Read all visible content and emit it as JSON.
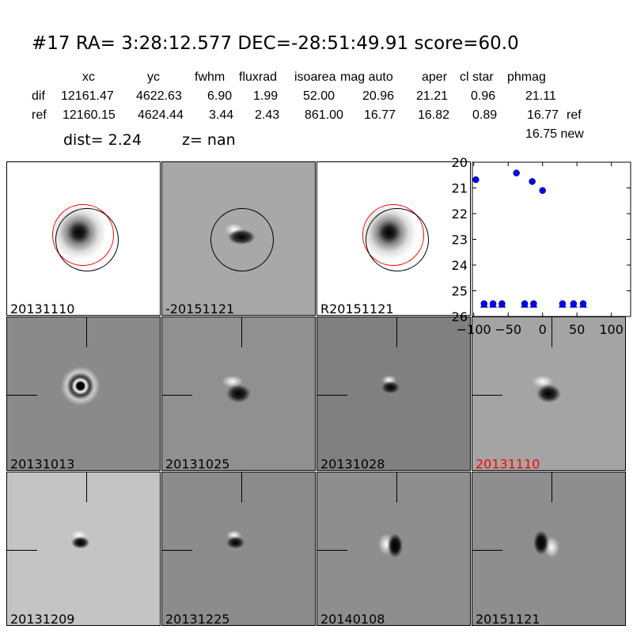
{
  "title": "#17   RA= 3:28:12.577 DEC=-28:51:49.91      score=60.0",
  "table": {
    "headers": [
      "xc",
      "yc",
      "fwhm",
      "fluxrad",
      "isoarea",
      "mag auto",
      "aper",
      "cl star",
      "phmag"
    ],
    "rows": [
      {
        "label": "dif",
        "values": [
          "12161.47",
          "4622.63",
          "6.90",
          "1.99",
          "52.00",
          "20.96",
          "21.21",
          "0.96",
          "21.11"
        ],
        "suffix": ""
      },
      {
        "label": "ref",
        "values": [
          "12160.15",
          "4624.44",
          "3.44",
          "2.43",
          "861.00",
          "16.77",
          "16.82",
          "0.89",
          "16.77"
        ],
        "suffix": "ref"
      }
    ],
    "new_mag": "16.75 new",
    "dist": "dist=  2.24",
    "z": "z=   nan"
  },
  "stamps": [
    {
      "label": "20131110",
      "bg": "#ffffff",
      "type": "ref",
      "color": "#000000"
    },
    {
      "label": "-20151121",
      "bg": "#a8a8a8",
      "type": "dif",
      "color": "#000000"
    },
    {
      "label": "R20151121",
      "bg": "#ffffff",
      "type": "ref",
      "color": "#000000"
    },
    {
      "label": "20131013",
      "bg": "#8a8a8a",
      "type": "ring",
      "color": "#000000"
    },
    {
      "label": "20131025",
      "bg": "#909090",
      "type": "dipole",
      "color": "#000000"
    },
    {
      "label": "20131028",
      "bg": "#808080",
      "type": "small",
      "color": "#000000"
    },
    {
      "label": "20131110",
      "bg": "#a4a4a4",
      "type": "dipole",
      "color": "#ff0000"
    },
    {
      "label": "20131209",
      "bg": "#c4c4c4",
      "type": "small",
      "color": "#000000"
    },
    {
      "label": "20131225",
      "bg": "#8c8c8c",
      "type": "small",
      "color": "#000000"
    },
    {
      "label": "20140108",
      "bg": "#8e8e8e",
      "type": "diag",
      "color": "#000000"
    },
    {
      "label": "20151121",
      "bg": "#8e8e8e",
      "type": "diag2",
      "color": "#000000"
    }
  ],
  "chart_data": {
    "type": "scatter",
    "xlim": [
      -102,
      128
    ],
    "ylim": [
      26,
      20
    ],
    "y_inverted": true,
    "xticks": [
      "−100",
      "−50",
      "0",
      "50",
      "100"
    ],
    "xtick_values": [
      -100,
      -50,
      0,
      50,
      100
    ],
    "yticks": [
      "20",
      "21",
      "22",
      "23",
      "24",
      "25",
      "26"
    ],
    "ytick_values": [
      20,
      21,
      22,
      23,
      24,
      25,
      26
    ],
    "marker_color": "#0000ff",
    "detections": [
      {
        "x": -97,
        "y": 20.68
      },
      {
        "x": -38,
        "y": 20.42
      },
      {
        "x": -15,
        "y": 20.75
      },
      {
        "x": 0,
        "y": 21.1
      }
    ],
    "upper_limits": [
      {
        "x": -85,
        "y": 25.5
      },
      {
        "x": -72,
        "y": 25.5
      },
      {
        "x": -59,
        "y": 25.5
      },
      {
        "x": -26,
        "y": 25.5
      },
      {
        "x": -13,
        "y": 25.5
      },
      {
        "x": 29,
        "y": 25.5
      },
      {
        "x": 45,
        "y": 25.5
      },
      {
        "x": 59,
        "y": 25.5
      }
    ]
  }
}
